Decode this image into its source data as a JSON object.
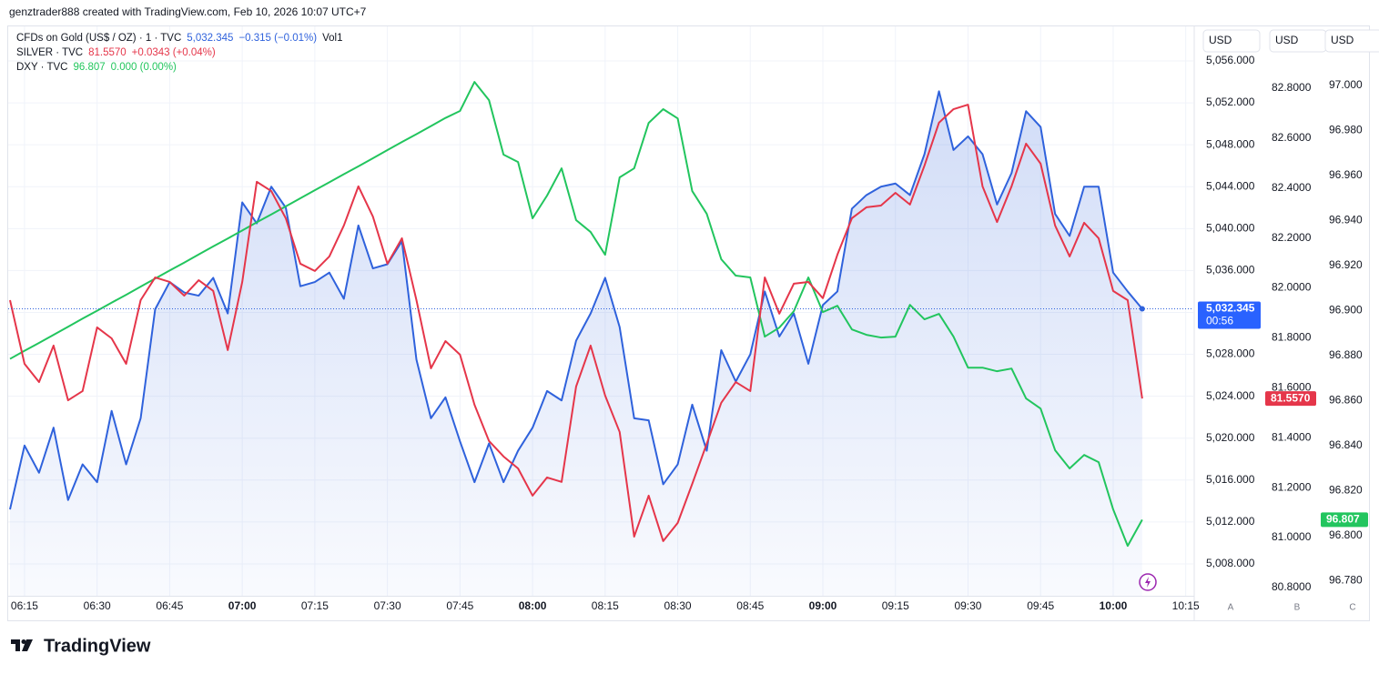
{
  "header": "genztrader888 created with TradingView.com, Feb 10, 2026 10:07 UTC+7",
  "footer": "TradingView",
  "chart_data": {
    "type": "line",
    "x": [
      "06:12",
      "06:15",
      "06:18",
      "06:21",
      "06:24",
      "06:27",
      "06:30",
      "06:33",
      "06:36",
      "06:39",
      "06:42",
      "06:45",
      "06:48",
      "06:51",
      "06:54",
      "06:57",
      "07:00",
      "07:03",
      "07:06",
      "07:09",
      "07:12",
      "07:15",
      "07:18",
      "07:21",
      "07:24",
      "07:27",
      "07:30",
      "07:33",
      "07:36",
      "07:39",
      "07:42",
      "07:45",
      "07:48",
      "07:51",
      "07:54",
      "07:57",
      "08:00",
      "08:03",
      "08:06",
      "08:09",
      "08:12",
      "08:15",
      "08:18",
      "08:21",
      "08:24",
      "08:27",
      "08:30",
      "08:33",
      "08:36",
      "08:39",
      "08:42",
      "08:45",
      "08:48",
      "08:51",
      "08:54",
      "08:57",
      "09:00",
      "09:03",
      "09:06",
      "09:09",
      "09:12",
      "09:15",
      "09:18",
      "09:21",
      "09:24",
      "09:27",
      "09:30",
      "09:33",
      "09:36",
      "09:39",
      "09:42",
      "09:45",
      "09:48",
      "09:51",
      "09:54",
      "09:57",
      "10:00",
      "10:03",
      "10:06"
    ],
    "xlim": [
      "06:12",
      "10:16"
    ],
    "xticks": [
      "06:15",
      "06:30",
      "06:45",
      "07:00",
      "07:15",
      "07:30",
      "07:45",
      "08:00",
      "08:15",
      "08:30",
      "08:45",
      "09:00",
      "09:15",
      "09:30",
      "09:45",
      "10:00",
      "10:15"
    ],
    "series": [
      {
        "name": "CFDs on Gold (US$ / OZ) · 1 · TVC",
        "color": "#2f62dc",
        "axis": "y",
        "area": true,
        "last_label": "5,032.345",
        "change_label": "−0.315 (−0.01%)",
        "indicator_label": "Vol1",
        "countdown": "00:56",
        "values": [
          5013.2,
          5019.3,
          5016.7,
          5021.0,
          5014.1,
          5017.5,
          5015.8,
          5022.6,
          5017.5,
          5021.9,
          5032.3,
          5034.9,
          5033.9,
          5033.6,
          5035.3,
          5031.9,
          5042.5,
          5040.5,
          5044.0,
          5042.0,
          5034.5,
          5034.9,
          5035.8,
          5033.3,
          5040.3,
          5036.2,
          5036.6,
          5038.8,
          5027.5,
          5021.9,
          5023.9,
          5019.7,
          5015.8,
          5019.5,
          5015.8,
          5018.8,
          5021.0,
          5024.5,
          5023.6,
          5029.3,
          5031.9,
          5035.3,
          5030.6,
          5021.9,
          5021.7,
          5015.6,
          5017.5,
          5023.2,
          5018.8,
          5028.4,
          5025.4,
          5028.0,
          5034.0,
          5029.7,
          5031.9,
          5027.1,
          5032.7,
          5034.0,
          5041.9,
          5043.2,
          5044.0,
          5044.3,
          5043.2,
          5047.1,
          5053.1,
          5047.5,
          5048.8,
          5047.1,
          5042.3,
          5045.3,
          5051.2,
          5049.7,
          5041.4,
          5039.3,
          5044.0,
          5044.0,
          5035.8,
          5034.0,
          5032.345
        ]
      },
      {
        "name": "SILVER · TVC",
        "color": "#e5364a",
        "axis": "y2",
        "last_label": "81.5570",
        "change_label": "+0.0343 (+0.04%)",
        "values": [
          81.951,
          81.696,
          81.623,
          81.769,
          81.55,
          81.587,
          81.842,
          81.798,
          81.696,
          81.951,
          82.042,
          82.024,
          81.969,
          82.031,
          81.988,
          81.751,
          82.024,
          82.425,
          82.388,
          82.279,
          82.097,
          82.068,
          82.126,
          82.25,
          82.407,
          82.286,
          82.097,
          82.199,
          81.951,
          81.678,
          81.787,
          81.733,
          81.532,
          81.387,
          81.325,
          81.277,
          81.168,
          81.241,
          81.223,
          81.605,
          81.769,
          81.569,
          81.423,
          81.004,
          81.168,
          80.986,
          81.059,
          81.215,
          81.376,
          81.54,
          81.623,
          81.587,
          82.042,
          81.897,
          82.017,
          82.024,
          81.959,
          82.133,
          82.279,
          82.323,
          82.33,
          82.381,
          82.334,
          82.49,
          82.662,
          82.716,
          82.734,
          82.407,
          82.264,
          82.407,
          82.578,
          82.498,
          82.25,
          82.126,
          82.261,
          82.199,
          81.988,
          81.951,
          81.557
        ]
      },
      {
        "name": "DXY · TVC",
        "color": "#22c55e",
        "axis": "y3",
        "last_label": "96.807",
        "change_label": "0.000 (0.00%)",
        "values": [
          96.8785,
          96.8821,
          96.8856,
          96.8892,
          96.8928,
          96.8964,
          96.8999,
          96.9035,
          96.907,
          96.9106,
          96.9142,
          96.9178,
          96.9213,
          96.9249,
          96.9285,
          96.932,
          96.9356,
          96.9392,
          96.9427,
          96.9463,
          96.9499,
          96.9535,
          96.957,
          96.9606,
          96.9641,
          96.9677,
          96.9713,
          96.9749,
          96.9784,
          96.982,
          96.9856,
          96.9887,
          97.0016,
          96.9935,
          96.9693,
          96.966,
          96.941,
          96.9511,
          96.9632,
          96.9402,
          96.9349,
          96.9248,
          96.9592,
          96.9632,
          96.9834,
          96.9895,
          96.9854,
          96.9531,
          96.943,
          96.9228,
          96.9155,
          96.9147,
          96.8884,
          96.8924,
          96.8997,
          96.9147,
          96.8993,
          96.9021,
          96.8916,
          96.8892,
          96.888,
          96.8884,
          96.9025,
          96.8961,
          96.8985,
          96.8884,
          96.8746,
          96.8746,
          96.873,
          96.8742,
          96.8609,
          96.8564,
          96.8379,
          96.8298,
          96.8358,
          96.8326,
          96.8116,
          96.7954,
          96.807
        ]
      }
    ],
    "ylim": [
      5004.96,
      5059.21
    ],
    "yticks": [
      {
        "value": 5008,
        "label": "5,008.000"
      },
      {
        "value": 5012,
        "label": "5,012.000"
      },
      {
        "value": 5016,
        "label": "5,016.000"
      },
      {
        "value": 5020,
        "label": "5,020.000"
      },
      {
        "value": 5024,
        "label": "5,024.000"
      },
      {
        "value": 5028,
        "label": "5,028.000"
      },
      {
        "value": 5032,
        "label": "5,032.000"
      },
      {
        "value": 5036,
        "label": "5,036.000"
      },
      {
        "value": 5040,
        "label": "5,040.000"
      },
      {
        "value": 5044,
        "label": "5,044.000"
      },
      {
        "value": 5048,
        "label": "5,048.000"
      },
      {
        "value": 5052,
        "label": "5,052.000"
      },
      {
        "value": 5056,
        "label": "5,056.000"
      }
    ],
    "y2lim": [
      80.767,
      83.044
    ],
    "y2ticks": [
      {
        "value": 80.8,
        "label": "80.8000"
      },
      {
        "value": 81.0,
        "label": "81.0000"
      },
      {
        "value": 81.2,
        "label": "81.2000"
      },
      {
        "value": 81.4,
        "label": "81.4000"
      },
      {
        "value": 81.6,
        "label": "81.6000"
      },
      {
        "value": 81.8,
        "label": "81.8000"
      },
      {
        "value": 82.0,
        "label": "82.0000"
      },
      {
        "value": 82.2,
        "label": "82.2000"
      },
      {
        "value": 82.4,
        "label": "82.4000"
      },
      {
        "value": 82.6,
        "label": "82.6000"
      },
      {
        "value": 82.8,
        "label": "82.8000"
      }
    ],
    "y3lim": [
      96.7732,
      97.0259
    ],
    "y3ticks": [
      {
        "value": 96.78,
        "label": "96.780"
      },
      {
        "value": 96.8,
        "label": "96.800"
      },
      {
        "value": 96.82,
        "label": "96.820"
      },
      {
        "value": 96.84,
        "label": "96.840"
      },
      {
        "value": 96.86,
        "label": "96.860"
      },
      {
        "value": 96.88,
        "label": "96.880"
      },
      {
        "value": 96.9,
        "label": "96.900"
      },
      {
        "value": 96.92,
        "label": "96.920"
      },
      {
        "value": 96.94,
        "label": "96.940"
      },
      {
        "value": 96.96,
        "label": "96.960"
      },
      {
        "value": 96.98,
        "label": "96.980"
      },
      {
        "value": 97.0,
        "label": "97.000"
      }
    ],
    "axis_units": [
      "USD",
      "USD",
      "USD"
    ],
    "axis_names": [
      "A",
      "B",
      "C"
    ],
    "grid": true
  }
}
